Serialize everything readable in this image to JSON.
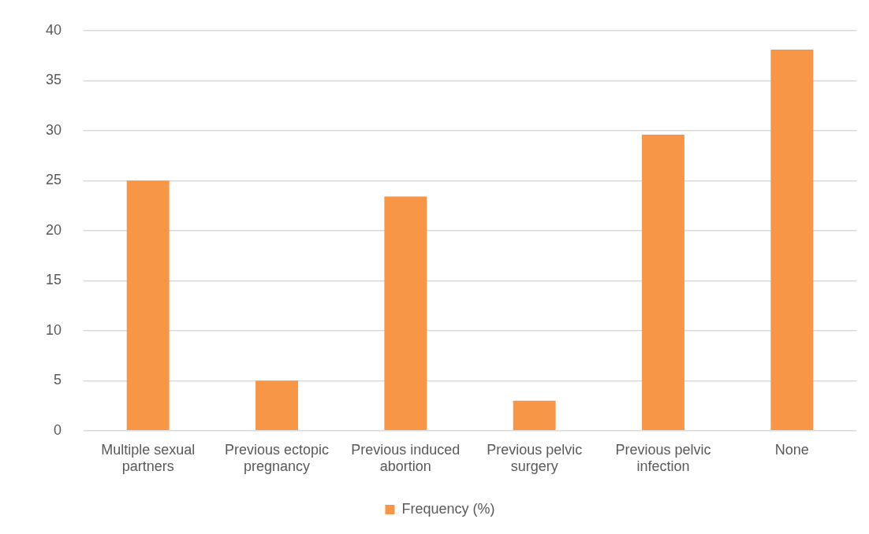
{
  "chart_data": {
    "type": "bar",
    "categories": [
      "Multiple sexual partners",
      "Previous ectopic pregnancy",
      "Previous induced abortion",
      "Previous pelvic surgery",
      "Previous pelvic infection",
      "None"
    ],
    "series": [
      {
        "name": "Frequency (%)",
        "color": "#f79646",
        "values": [
          25,
          5,
          23.4,
          3,
          29.6,
          38.1
        ]
      }
    ],
    "ylim": [
      0,
      40
    ],
    "yticks": [
      0,
      5,
      10,
      15,
      20,
      25,
      30,
      35,
      40
    ],
    "grid": "y",
    "legend": "bottom"
  }
}
